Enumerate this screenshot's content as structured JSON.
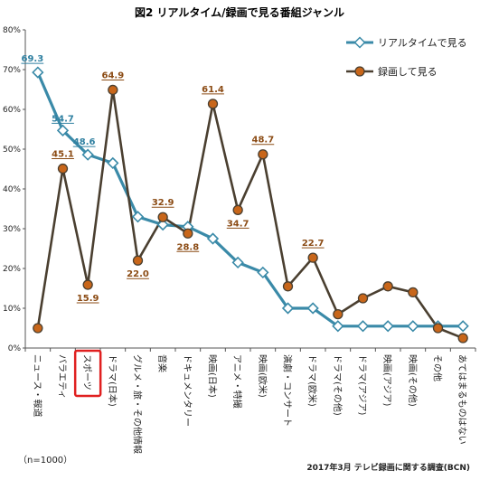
{
  "chart_data": {
    "type": "line",
    "title": "図2 リアルタイム/録画で見る番組ジャンル",
    "categories": [
      "ニュース・報道",
      "バラエティ",
      "スポーツ",
      "ドラマ(日本)",
      "グルメ・旅・その他情報",
      "音楽",
      "ドキュメンタリー",
      "映画(日本)",
      "アニメ・特撮",
      "映画(欧米)",
      "演劇・コンサート",
      "ドラマ(欧米)",
      "ドラマ(その他)",
      "ドラマ(アジア)",
      "映画(アジア)",
      "映画(その他)",
      "その他",
      "あてはまるものはない"
    ],
    "highlighted_category": "スポーツ",
    "series": [
      {
        "name": "リアルタイムで見る",
        "color": "#3a8aa8",
        "marker": "diamond",
        "values": [
          69.3,
          54.7,
          48.6,
          46.5,
          33.0,
          31.0,
          30.5,
          27.5,
          21.5,
          19.0,
          10.0,
          10.0,
          5.5,
          5.5,
          5.5,
          5.5,
          5.5,
          5.5
        ],
        "labels": [
          "69.3",
          "54.7",
          "48.6",
          "",
          "",
          "",
          "",
          "",
          "",
          "",
          "",
          "",
          "",
          "",
          "",
          "",
          "",
          ""
        ]
      },
      {
        "name": "録画して見る",
        "color": "#4a3f30",
        "marker": "circle",
        "marker_fill": "#c8661a",
        "values": [
          5.0,
          45.1,
          15.9,
          64.9,
          22.0,
          32.9,
          28.8,
          61.4,
          34.7,
          48.7,
          15.5,
          22.7,
          8.5,
          12.5,
          15.5,
          14.0,
          5.0,
          2.5
        ],
        "labels": [
          "",
          "45.1",
          "15.9",
          "64.9",
          "22.0",
          "32.9",
          "28.8",
          "61.4",
          "34.7",
          "48.7",
          "",
          "22.7",
          "",
          "",
          "",
          "",
          "",
          ""
        ]
      }
    ],
    "yticks": [
      "0%",
      "10%",
      "20%",
      "30%",
      "40%",
      "50%",
      "60%",
      "70%",
      "80%"
    ],
    "ylim": [
      0,
      80
    ],
    "grid": false,
    "legend_position": "top-right"
  },
  "notes": {
    "sample": "（n=1000）",
    "source": "2017年3月 テレビ録画に関する調査(BCN)"
  }
}
